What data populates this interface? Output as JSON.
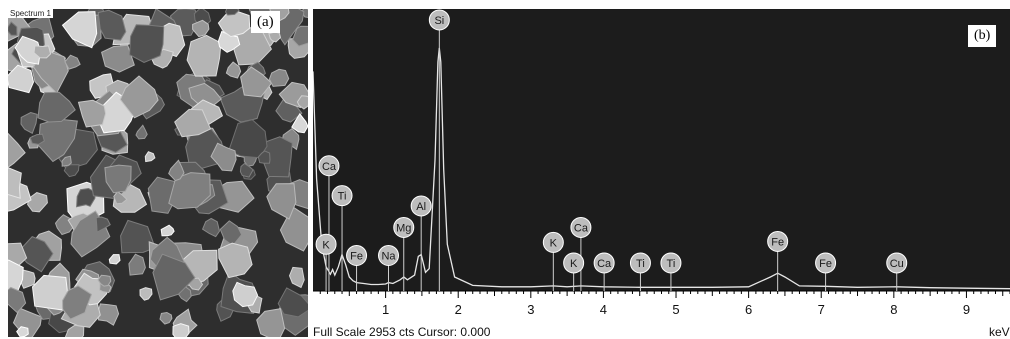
{
  "panel_a": {
    "tag": "(a)",
    "scale_label": "Spectrum 1"
  },
  "panel_b": {
    "tag": "(b)",
    "footer": "Full Scale 2953 cts Cursor: 0.000",
    "unit": "keV"
  },
  "chart_data": {
    "type": "line",
    "title": "",
    "xlabel": "keV",
    "ylabel": "",
    "xlim": [
      0,
      9.6
    ],
    "ylim": [
      0,
      2953
    ],
    "grid": false,
    "x_ticks": [
      "1",
      "2",
      "3",
      "4",
      "5",
      "6",
      "7",
      "8",
      "9"
    ],
    "colors": {
      "background": "#1c1c1c",
      "trace": "#e6e6e6",
      "peak_label": "#bdbdbd",
      "peak_text": "#1a1a1a"
    },
    "spectrum": {
      "x": [
        0.0,
        0.05,
        0.12,
        0.18,
        0.24,
        0.27,
        0.3,
        0.35,
        0.4,
        0.45,
        0.5,
        0.55,
        0.6,
        0.7,
        0.8,
        0.9,
        1.0,
        1.04,
        1.1,
        1.2,
        1.25,
        1.3,
        1.4,
        1.45,
        1.49,
        1.55,
        1.6,
        1.68,
        1.72,
        1.74,
        1.76,
        1.8,
        1.85,
        1.95,
        2.2,
        2.6,
        3.0,
        3.31,
        3.5,
        3.69,
        4.0,
        4.5,
        5.0,
        5.5,
        6.0,
        6.3,
        6.4,
        6.5,
        6.7,
        7.06,
        7.5,
        8.04,
        8.5,
        9.0,
        9.6
      ],
      "y": [
        2350,
        1200,
        500,
        260,
        180,
        230,
        170,
        260,
        390,
        280,
        150,
        110,
        90,
        80,
        70,
        70,
        75,
        90,
        80,
        120,
        150,
        120,
        170,
        370,
        390,
        200,
        240,
        1400,
        2450,
        2600,
        2450,
        1300,
        500,
        150,
        60,
        45,
        45,
        55,
        45,
        55,
        45,
        40,
        40,
        40,
        45,
        150,
        190,
        150,
        55,
        50,
        40,
        45,
        35,
        30,
        25
      ]
    },
    "peak_labels": [
      {
        "element": "Ca",
        "x": 0.22,
        "y": 1340
      },
      {
        "element": "Ti",
        "x": 0.4,
        "y": 1020
      },
      {
        "element": "K",
        "x": 0.18,
        "y": 500
      },
      {
        "element": "Fe",
        "x": 0.6,
        "y": 380
      },
      {
        "element": "Na",
        "x": 1.04,
        "y": 380
      },
      {
        "element": "Mg",
        "x": 1.25,
        "y": 680
      },
      {
        "element": "Al",
        "x": 1.49,
        "y": 910
      },
      {
        "element": "Si",
        "x": 1.74,
        "y": 2900
      },
      {
        "element": "K",
        "x": 3.31,
        "y": 520
      },
      {
        "element": "Ca",
        "x": 3.69,
        "y": 680
      },
      {
        "element": "K",
        "x": 3.59,
        "y": 300
      },
      {
        "element": "Ca",
        "x": 4.01,
        "y": 300
      },
      {
        "element": "Ti",
        "x": 4.51,
        "y": 300
      },
      {
        "element": "Ti",
        "x": 4.93,
        "y": 300
      },
      {
        "element": "Fe",
        "x": 6.4,
        "y": 530
      },
      {
        "element": "Fe",
        "x": 7.06,
        "y": 300
      },
      {
        "element": "Cu",
        "x": 8.04,
        "y": 300
      }
    ]
  }
}
